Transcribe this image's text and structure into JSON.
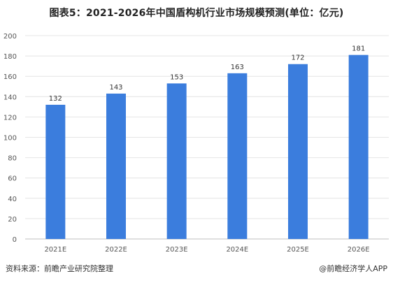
{
  "title": "图表5：2021-2026年中国盾构机行业市场规模预测(单位：亿元)",
  "source_label": "资料来源：前瞻产业研究院整理",
  "brand_label": "@前瞻经济学人APP",
  "colors": {
    "bar": "#3b7ddd",
    "grid": "#e4e4e4"
  },
  "chart_data": {
    "type": "bar",
    "title": "图表5：2021-2026年中国盾构机行业市场规模预测(单位：亿元)",
    "categories": [
      "2021E",
      "2022E",
      "2023E",
      "2024E",
      "2025E",
      "2026E"
    ],
    "values": [
      132,
      143,
      153,
      163,
      172,
      181
    ],
    "ylim": [
      0,
      200
    ],
    "yticks": [
      0,
      20,
      40,
      60,
      80,
      100,
      120,
      140,
      160,
      180,
      200
    ],
    "grid": true,
    "legend": "none"
  }
}
